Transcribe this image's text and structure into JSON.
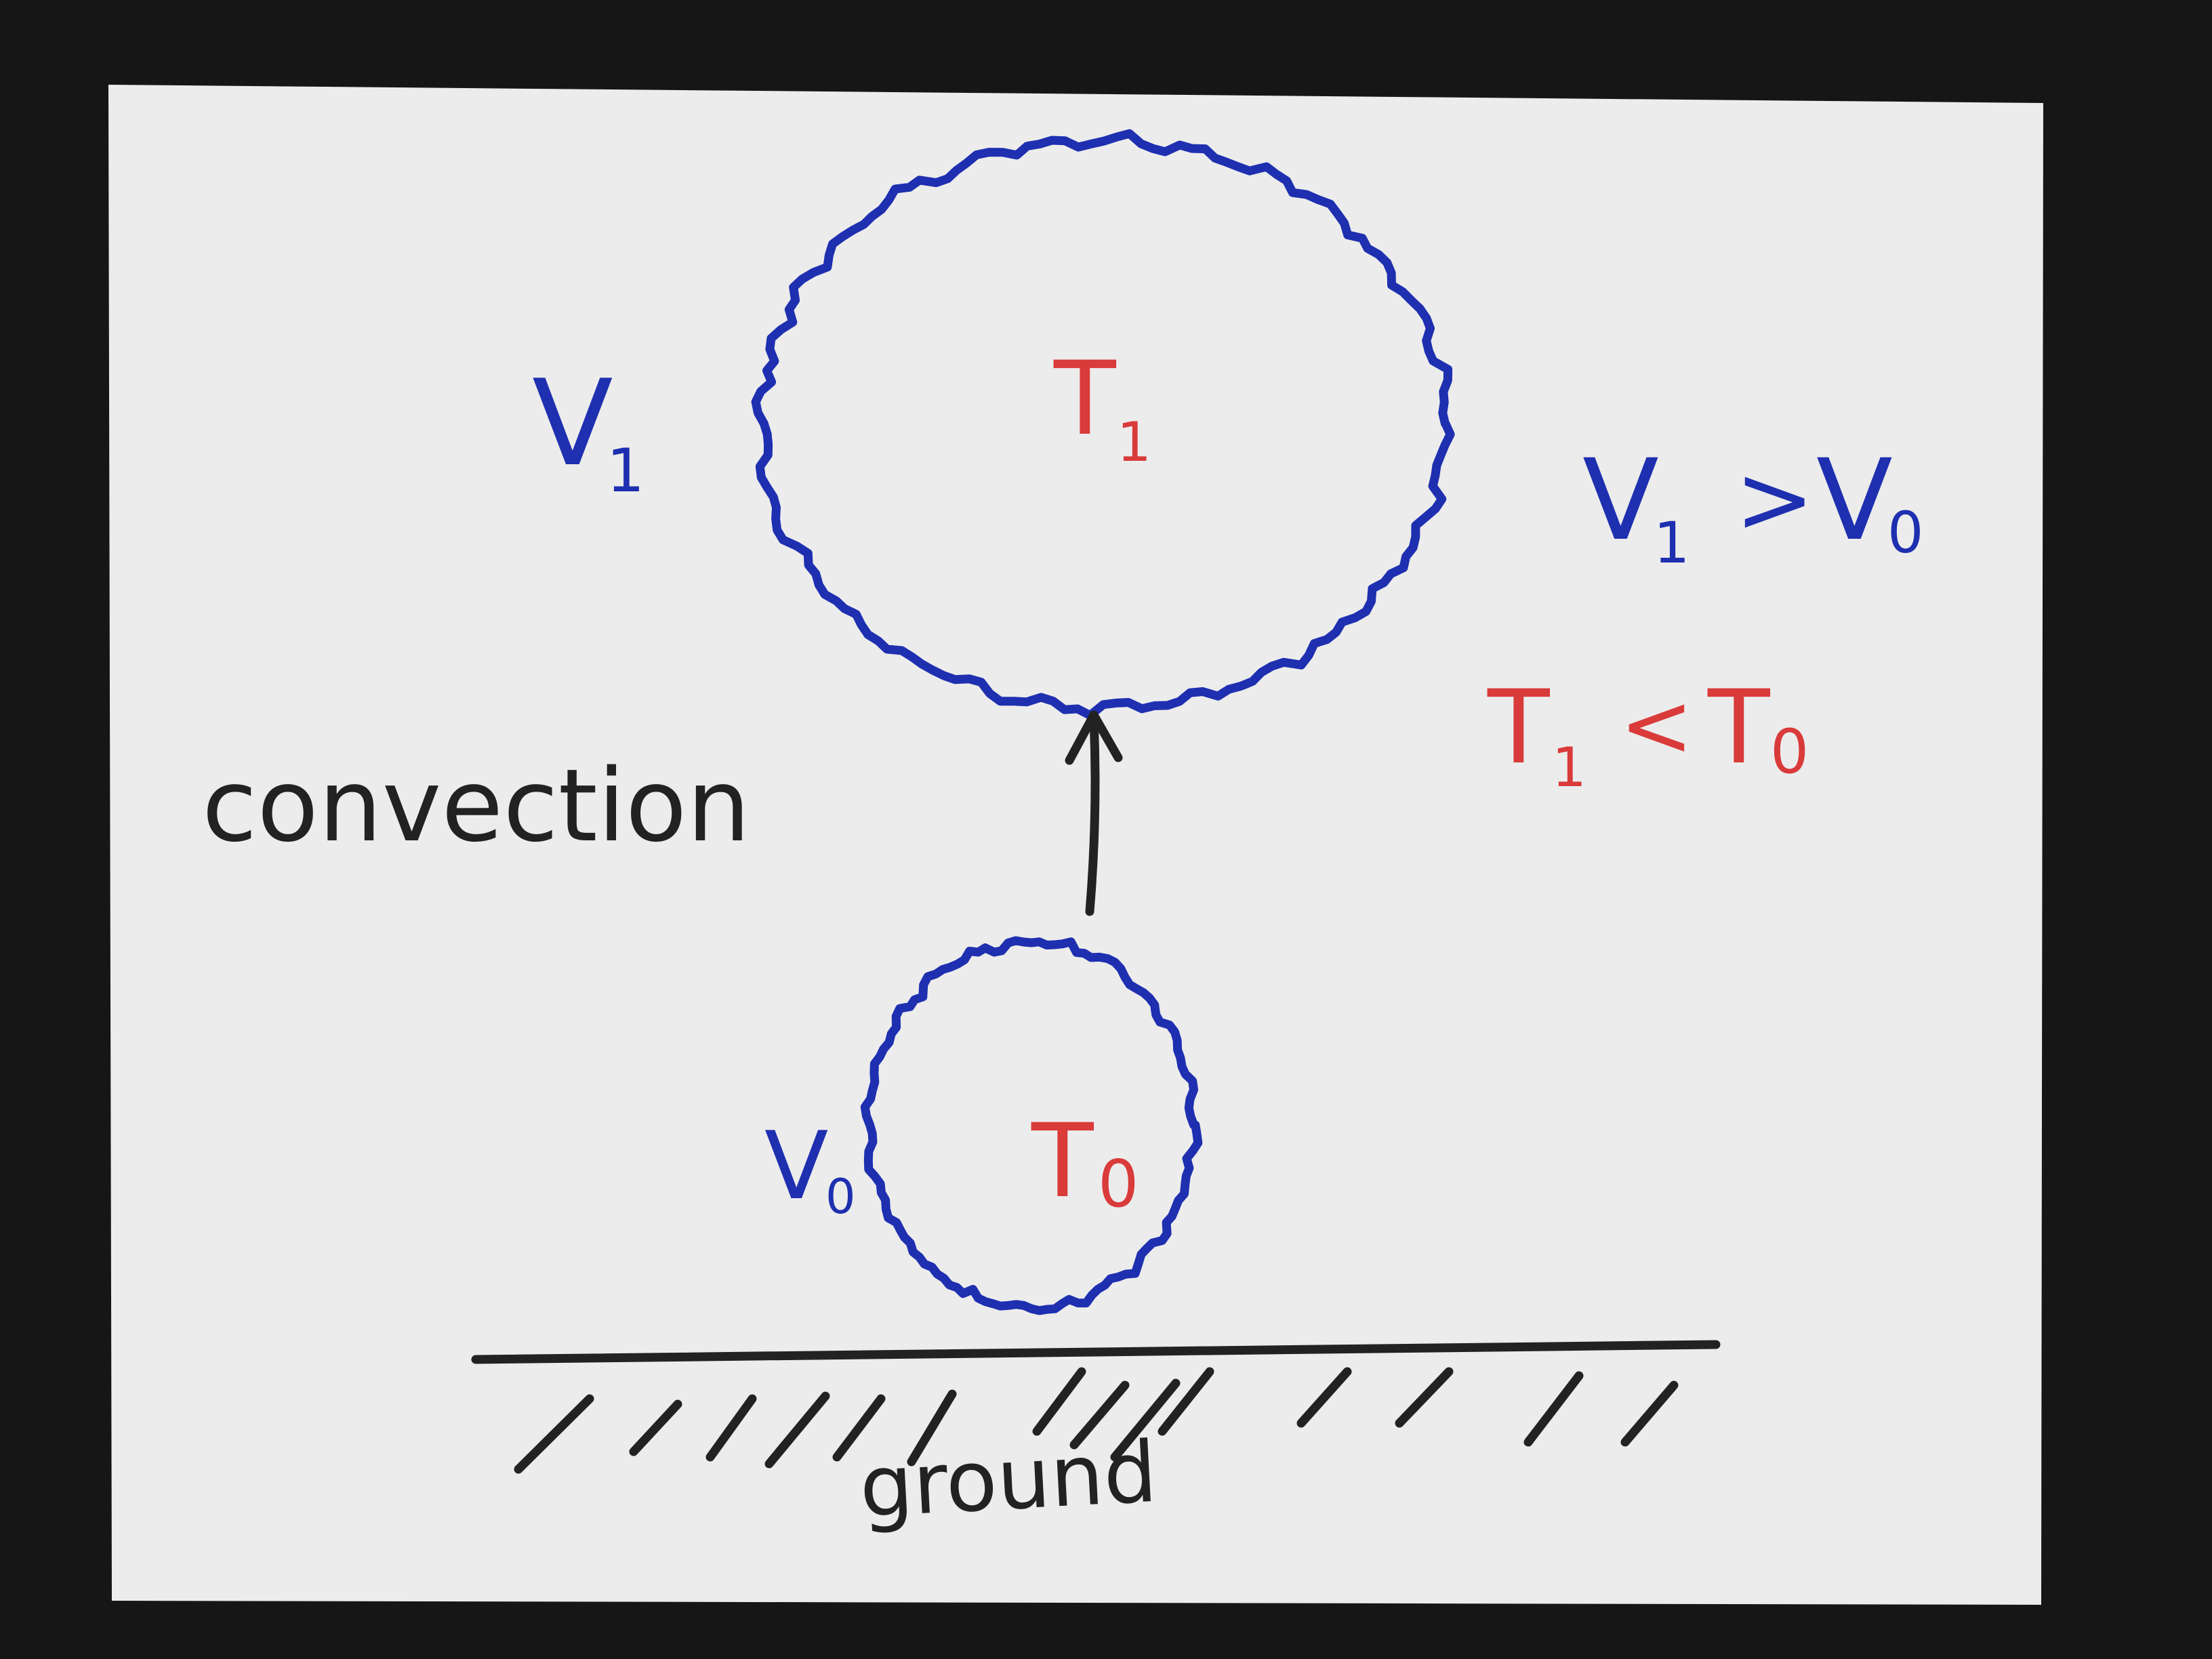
{
  "title": "convection",
  "ground_label": "ground",
  "colors": {
    "background": "#161616",
    "paper": "#ececec",
    "ink_black": "#222222",
    "ink_blue": "#1e2fb0",
    "ink_red": "#d93a3a"
  },
  "parcel_top": {
    "volume": {
      "symbol": "V",
      "subscript": "1"
    },
    "temperature": {
      "symbol": "T",
      "subscript": "1"
    }
  },
  "parcel_bottom": {
    "volume": {
      "symbol": "V",
      "subscript": "0"
    },
    "temperature": {
      "symbol": "T",
      "subscript": "0"
    }
  },
  "relation_volume": {
    "left": {
      "symbol": "V",
      "subscript": "1"
    },
    "operator": ">",
    "right": {
      "symbol": "V",
      "subscript": "0"
    }
  },
  "relation_temperature": {
    "left": {
      "symbol": "T",
      "subscript": "1"
    },
    "operator": "<",
    "right": {
      "symbol": "T",
      "subscript": "0"
    }
  },
  "arrow": {
    "direction": "up",
    "meaning": ""
  }
}
